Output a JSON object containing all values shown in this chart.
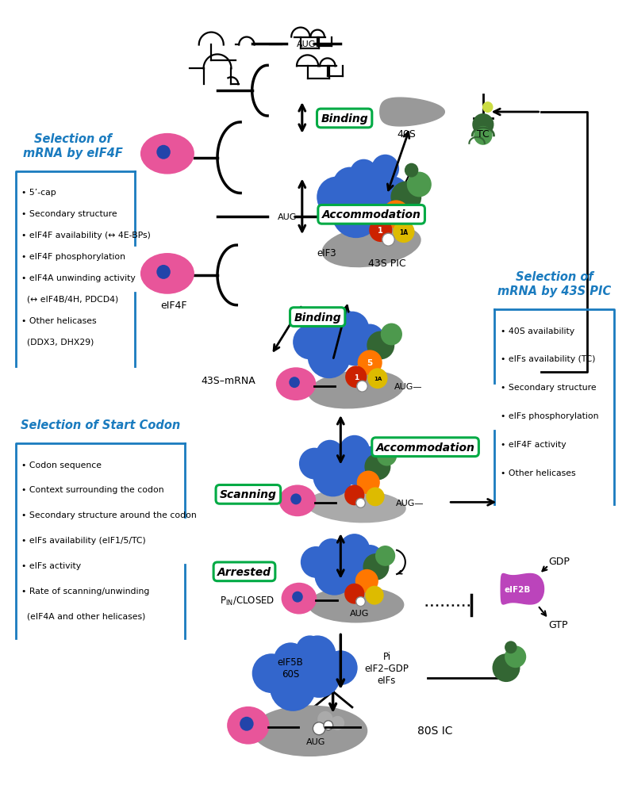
{
  "background_color": "#ffffff",
  "selection_mRNA_eIF4F": {
    "title": "Selection of\nmRNA by eIF4F",
    "title_color": "#1a7bbf",
    "box_color": "#1a7bbf",
    "items": [
      "• 5’-cap",
      "• Secondary structure",
      "• eIF4F availability (↔ 4E-BPs)",
      "• eIF4F phosphorylation",
      "• eIF4A unwinding activity",
      "  (↔ eIF4B/4H, PDCD4)",
      "• Other helicases",
      "  (DDX3, DHX29)"
    ]
  },
  "selection_mRNA_43S": {
    "title": "Selection of\nmRNA by 43S PIC",
    "title_color": "#1a7bbf",
    "box_color": "#1a7bbf",
    "items": [
      "• 40S availability",
      "• eIFs availability (TC)",
      "• Secondary structure",
      "• eIFs phosphorylation",
      "• eIF4F activity",
      "• Other helicases"
    ]
  },
  "selection_start_codon": {
    "title": "Selection of Start Codon",
    "title_color": "#1a7bbf",
    "box_color": "#1a7bbf",
    "items": [
      "• Codon sequence",
      "• Context surrounding the codon",
      "• Secondary structure around the codon",
      "• eIFs availability (eIF1/5/TC)",
      "• eIFs activity",
      "• Rate of scanning/unwinding",
      "  (eIF4A and other helicases)"
    ]
  },
  "colors": {
    "blue_ribosome": "#3366cc",
    "pink_cap": "#e8559a",
    "gray_40S": "#999999",
    "green_tc": "#336633",
    "green_light": "#4d994d",
    "orange_5": "#ff7700",
    "red_1": "#cc2200",
    "yellow_1A": "#ddbb00",
    "binding_box_color": "#00aa44",
    "arrow_color": "#111111",
    "blue_dot": "#2244aa",
    "eif2b_color": "#bb44bb",
    "gray_light": "#aaaaaa"
  }
}
